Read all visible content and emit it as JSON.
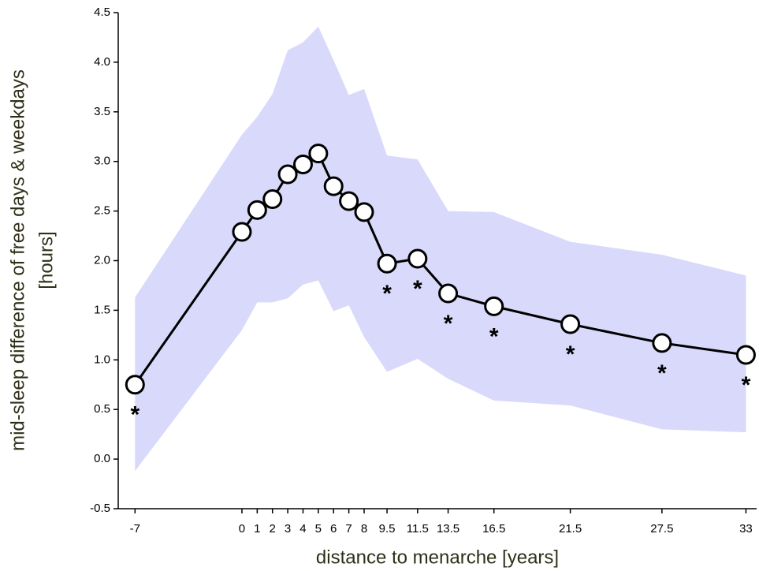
{
  "chart_data": {
    "type": "line",
    "xlabel": "distance to menarche [years]",
    "ylabel": [
      "mid-sleep difference of free days & weekdays",
      "[hours]"
    ],
    "x": [
      -7,
      0,
      1,
      2,
      3,
      4,
      5,
      6,
      7,
      8,
      9.5,
      11.5,
      13.5,
      16.5,
      21.5,
      27.5,
      33
    ],
    "values": [
      0.75,
      2.29,
      2.51,
      2.62,
      2.87,
      2.97,
      3.08,
      2.75,
      2.6,
      2.49,
      1.97,
      2.02,
      1.67,
      1.54,
      1.36,
      1.17,
      1.05
    ],
    "upper": [
      1.63,
      3.27,
      3.45,
      3.68,
      4.12,
      4.2,
      4.36,
      4.02,
      3.67,
      3.73,
      3.06,
      3.02,
      2.5,
      2.49,
      2.19,
      2.06,
      1.85
    ],
    "lower": [
      -0.12,
      1.3,
      1.58,
      1.58,
      1.62,
      1.76,
      1.8,
      1.49,
      1.55,
      1.23,
      0.88,
      1.01,
      0.81,
      0.59,
      0.54,
      0.3,
      0.27
    ],
    "significance": [
      "*",
      null,
      null,
      null,
      null,
      null,
      null,
      null,
      null,
      null,
      "*",
      "*",
      "*",
      "*",
      "*",
      "*",
      "*"
    ],
    "color": "#000000",
    "band_color": "#d9d9fb",
    "xlim": [
      -8.1,
      33.7
    ],
    "ylim": [
      -0.5,
      4.5
    ],
    "xticks": [
      -7,
      0,
      1,
      2,
      3,
      4,
      5,
      6,
      7,
      8,
      9.5,
      11.5,
      13.5,
      16.5,
      21.5,
      27.5,
      33
    ],
    "yticks": [
      -0.5,
      {
        "value": 0,
        "label": "0.0"
      },
      0.5,
      {
        "value": 1,
        "label": "1.0"
      },
      1.5,
      {
        "value": 2,
        "label": "2.0"
      },
      2.5,
      {
        "value": 3,
        "label": "3.0"
      },
      3.5,
      {
        "value": 4,
        "label": "4.0"
      },
      4.5
    ]
  }
}
